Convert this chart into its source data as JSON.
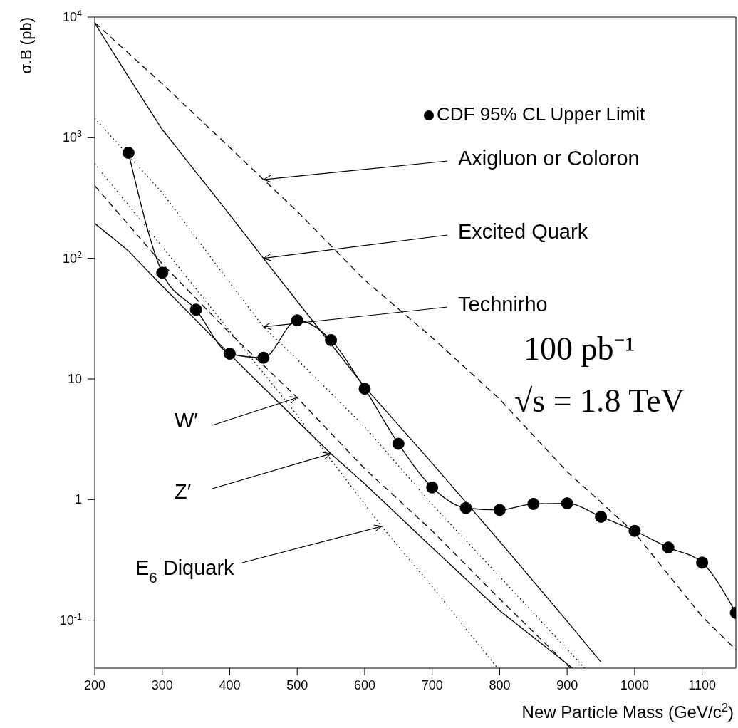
{
  "chart_data": {
    "type": "line",
    "xlabel": "New Particle Mass (GeV/c$^{2}$)",
    "ylabel": "σ.B (pb)",
    "log": "y",
    "grid": false,
    "legend": "top right",
    "xlim": [
      200,
      1150
    ],
    "xticks": [
      200,
      300,
      400,
      500,
      600,
      700,
      800,
      900,
      1000,
      1100
    ],
    "ylim": [
      0.04,
      10000
    ],
    "yticks": [
      {
        "value": 10000,
        "label": "10$^{4}$"
      },
      {
        "value": 1000,
        "label": "10$^{3}$"
      },
      {
        "value": 100,
        "label": "10$^{2}$"
      },
      10,
      1,
      {
        "value": 0.1,
        "label": "10$^{-1}$"
      }
    ],
    "annotations": [
      "100 pb⁻¹",
      "√s = 1.8 TeV",
      {
        "text": "Axigluon or Coloron",
        "x": 450,
        "y": 450
      },
      {
        "text": "Excited Quark",
        "x": 450,
        "y": 100
      },
      {
        "text": "Technirho",
        "x": 450,
        "y": 27
      },
      {
        "text": "W′",
        "x": 500,
        "y": 7
      },
      {
        "text": "Z′",
        "x": 550,
        "y": 2.4
      },
      {
        "text": "E$_{6}$ Diquark",
        "x": 625,
        "y": 0.6
      }
    ],
    "series": [
      {
        "name": "CDF 95% CL Upper Limit",
        "color": "#000000",
        "marker": "circle",
        "line_style": "solid",
        "x": [
          250,
          300,
          350,
          400,
          450,
          500,
          550,
          600,
          650,
          700,
          750,
          800,
          850,
          900,
          950,
          1000,
          1050,
          1100,
          1150
        ],
        "values": [
          750,
          76,
          37.5,
          16.2,
          15,
          30.6,
          21,
          8.3,
          2.9,
          1.26,
          0.85,
          0.82,
          0.92,
          0.93,
          0.72,
          0.55,
          0.4,
          0.3,
          0.115
        ]
      },
      {
        "color": "#000000",
        "marker": "none",
        "line_style": "dashed",
        "x": [
          200,
          300,
          400,
          450,
          500,
          600,
          700,
          800,
          900,
          1000,
          1100,
          1150
        ],
        "values": [
          9000,
          2800,
          830,
          450,
          245,
          66,
          22,
          6.8,
          1.7,
          0.53,
          0.107,
          0.057
        ]
      },
      {
        "color": "#000000",
        "marker": "none",
        "line_style": "solid",
        "x": [
          200,
          250,
          300,
          400,
          450,
          500,
          600,
          700,
          750,
          800,
          900,
          950
        ],
        "values": [
          8900,
          3200,
          1170,
          230,
          100,
          44,
          8.6,
          2,
          0.95,
          0.45,
          0.098,
          0.045
        ]
      },
      {
        "color": "#000000",
        "marker": "none",
        "line_style": "dotted",
        "x": [
          200,
          300,
          400,
          450,
          500,
          600,
          700,
          800,
          926
        ],
        "values": [
          1450,
          350,
          63,
          27,
          14.5,
          4,
          0.91,
          0.23,
          0.04
        ]
      },
      {
        "color": "#000000",
        "marker": "none",
        "line_style": "dashed",
        "x": [
          200,
          300,
          400,
          500,
          600,
          700,
          800,
          905
        ],
        "values": [
          400,
          90,
          24,
          7,
          1.8,
          0.55,
          0.15,
          0.04
        ]
      },
      {
        "color": "#000000",
        "marker": "none",
        "line_style": "solid",
        "x": [
          200,
          250,
          300,
          400,
          500,
          550,
          600,
          700,
          800,
          908
        ],
        "values": [
          195,
          115,
          59,
          16,
          4.5,
          2.4,
          1.35,
          0.4,
          0.12,
          0.04
        ]
      },
      {
        "color": "#000000",
        "marker": "none",
        "line_style": "dotted",
        "x": [
          200,
          300,
          400,
          500,
          625,
          700,
          797
        ],
        "values": [
          610,
          125,
          25,
          5,
          0.6,
          0.19,
          0.04
        ]
      }
    ]
  }
}
